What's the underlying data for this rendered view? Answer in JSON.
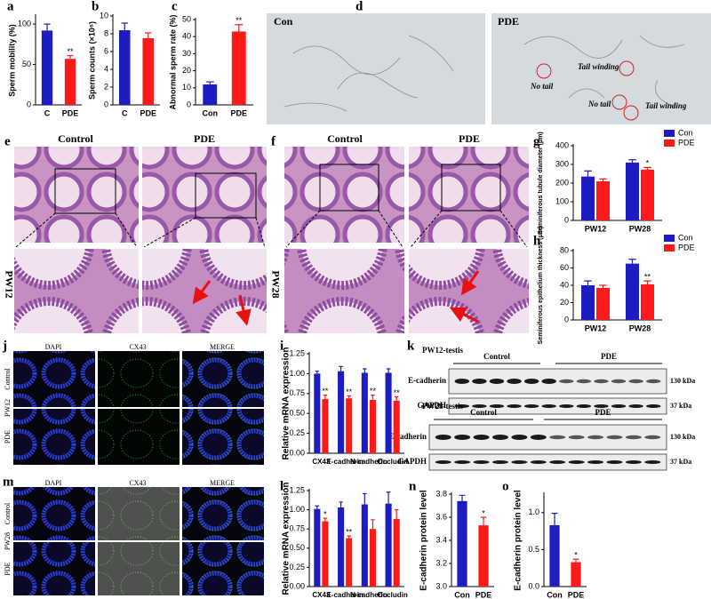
{
  "chart_data": [
    {
      "type": "bar",
      "label": "a",
      "ylabel": "Sperm mobility (%)",
      "categories": [
        "C",
        "PDE"
      ],
      "values": [
        92,
        57
      ],
      "errors": [
        8,
        4
      ],
      "annotations": [
        null,
        "**"
      ],
      "colors": [
        "#1c1cc0",
        "#ff1a1a"
      ],
      "ylim": [
        0,
        110
      ],
      "yticks": [
        0,
        50,
        100
      ]
    },
    {
      "type": "bar",
      "label": "b",
      "ylabel": "Sperm counts (×10⁶)",
      "categories": [
        "C",
        "PDE"
      ],
      "values": [
        8.4,
        7.5
      ],
      "errors": [
        0.8,
        0.6
      ],
      "colors": [
        "#1c1cc0",
        "#ff1a1a"
      ],
      "ylim": [
        0,
        10
      ],
      "yticks": [
        0,
        2,
        4,
        6,
        8,
        10
      ]
    },
    {
      "type": "bar",
      "label": "c",
      "ylabel": "Abnormal sperm rate (%)",
      "categories": [
        "Con",
        "PDE"
      ],
      "values": [
        12,
        43
      ],
      "errors": [
        1.5,
        4
      ],
      "annotations": [
        null,
        "**"
      ],
      "colors": [
        "#1c1cc0",
        "#ff1a1a"
      ],
      "ylim": [
        0,
        50
      ],
      "yticks": [
        0,
        10,
        20,
        30,
        40,
        50
      ]
    },
    {
      "type": "bar",
      "label": "g",
      "ylabel": "Seminiferous tubule diameter (μm)",
      "categories": [
        "PW12",
        "PW28"
      ],
      "series": [
        {
          "name": "Con",
          "color": "#1c1cc0",
          "values": [
            235,
            310
          ],
          "errors": [
            30,
            15
          ]
        },
        {
          "name": "PDE",
          "color": "#ff1a1a",
          "values": [
            210,
            272
          ],
          "errors": [
            12,
            12
          ],
          "annotations": [
            null,
            "*"
          ]
        }
      ],
      "ylim": [
        0,
        400
      ],
      "yticks": [
        0,
        100,
        200,
        300,
        400
      ],
      "legend": "top-right"
    },
    {
      "type": "bar",
      "label": "h",
      "ylabel": "Seminiferous epithelium thickness (μm)",
      "categories": [
        "PW12",
        "PW28"
      ],
      "series": [
        {
          "name": "Con",
          "color": "#1c1cc0",
          "values": [
            40,
            65
          ],
          "errors": [
            5,
            5
          ]
        },
        {
          "name": "PDE",
          "color": "#ff1a1a",
          "values": [
            37,
            41
          ],
          "errors": [
            3,
            4
          ],
          "annotations": [
            null,
            "**"
          ]
        }
      ],
      "ylim": [
        0,
        80
      ],
      "yticks": [
        0,
        20,
        40,
        60,
        80
      ],
      "legend": "top-right"
    },
    {
      "type": "bar",
      "label": "i",
      "ylabel": "Relative mRNA expression",
      "categories": [
        "CX43",
        "E-cadherin",
        "N-cadherin",
        "Occludin"
      ],
      "series": [
        {
          "name": "Con",
          "color": "#1c1cc0",
          "values": [
            1.0,
            1.03,
            1.01,
            1.01
          ],
          "errors": [
            0.03,
            0.06,
            0.05,
            0.05
          ]
        },
        {
          "name": "PDE",
          "color": "#ff1a1a",
          "values": [
            0.68,
            0.69,
            0.67,
            0.66
          ],
          "errors": [
            0.05,
            0.03,
            0.06,
            0.05
          ],
          "annotations": [
            "**",
            "**",
            "**",
            "**"
          ]
        }
      ],
      "ylim": [
        0,
        1.25
      ],
      "yticks": [
        {
          "value": 0,
          "label": "0.00"
        },
        0.25,
        {
          "value": 0.5,
          "label": "0.50"
        },
        0.75,
        {
          "value": 1,
          "label": "1.00"
        },
        1.25
      ]
    },
    {
      "type": "bar",
      "label": "l",
      "ylabel": "Relative mRNA expression",
      "categories": [
        "CX43",
        "E-cadherin",
        "N-cadherin",
        "Occludin"
      ],
      "series": [
        {
          "name": "Con",
          "color": "#1c1cc0",
          "values": [
            1.01,
            1.03,
            1.07,
            1.08
          ],
          "errors": [
            0.04,
            0.07,
            0.14,
            0.15
          ]
        },
        {
          "name": "PDE",
          "color": "#ff1a1a",
          "values": [
            0.85,
            0.63,
            0.75,
            0.88
          ],
          "errors": [
            0.04,
            0.03,
            0.12,
            0.12
          ],
          "annotations": [
            "*",
            "**",
            null,
            null
          ]
        }
      ],
      "ylim": [
        0,
        1.25
      ],
      "yticks": [
        {
          "value": 0,
          "label": "0.00"
        },
        0.25,
        {
          "value": 0.5,
          "label": "0.50"
        },
        0.75,
        {
          "value": 1,
          "label": "1.00"
        },
        1.25
      ]
    },
    {
      "type": "bar",
      "label": "n",
      "ylabel": "E-cadherin protein level",
      "categories": [
        "Con",
        "PDE"
      ],
      "values": [
        3.74,
        3.53
      ],
      "errors": [
        0.05,
        0.07
      ],
      "annotations": [
        null,
        "*"
      ],
      "colors": [
        "#1c1cc0",
        "#ff1a1a"
      ],
      "ylim": [
        3.0,
        3.8
      ],
      "yticks": [
        {
          "value": 3,
          "label": "3.0"
        },
        3.2,
        3.4,
        3.6,
        3.8
      ]
    },
    {
      "type": "bar",
      "label": "o",
      "ylabel": "E-cadherin protein level",
      "categories": [
        "Con",
        "PDE"
      ],
      "values": [
        0.83,
        0.33
      ],
      "errors": [
        0.16,
        0.04
      ],
      "annotations": [
        null,
        "*"
      ],
      "colors": [
        "#1c1cc0",
        "#ff1a1a"
      ],
      "ylim": [
        0,
        1.25
      ],
      "yticks": [
        {
          "value": 0,
          "label": "0.0"
        },
        0.5,
        {
          "value": 1,
          "label": "1.0"
        }
      ]
    }
  ],
  "images": {
    "d": {
      "label": "d",
      "left": "Con",
      "right": "PDE",
      "notes": [
        "No tail",
        "Tail winding",
        "No tail",
        "Tail winding"
      ]
    },
    "e": {
      "label": "e",
      "columns": [
        "Control",
        "PDE"
      ],
      "row": "PW12"
    },
    "f": {
      "label": "f",
      "columns": [
        "Control",
        "PDE"
      ],
      "row": "PW28"
    },
    "j": {
      "label": "j",
      "columns": [
        "DAPI",
        "CX43",
        "MERGE"
      ],
      "rows": [
        "Control",
        "PDE"
      ],
      "group": "PW12"
    },
    "m": {
      "label": "m",
      "columns": [
        "DAPI",
        "CX43",
        "MERGE"
      ],
      "rows": [
        "Control",
        "PDE"
      ],
      "group": "PW28"
    },
    "k": {
      "label": "k",
      "blots": [
        {
          "title": "PW12-testis",
          "groups": [
            "Control",
            "PDE"
          ],
          "proteins": [
            "E-cadherin",
            "GAPDH"
          ],
          "sizes": [
            "130 kDa",
            "37 kDa"
          ]
        },
        {
          "title": "PW28-testis",
          "groups": [
            "Control",
            "PDE"
          ],
          "proteins": [
            "E-cadherin",
            "GAPDH"
          ],
          "sizes": [
            "130 kDa",
            "37 kDa"
          ]
        }
      ]
    }
  }
}
